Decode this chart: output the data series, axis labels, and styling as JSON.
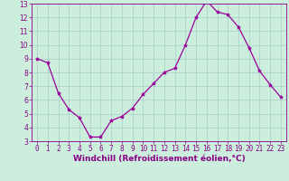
{
  "x": [
    0,
    1,
    2,
    3,
    4,
    5,
    6,
    7,
    8,
    9,
    10,
    11,
    12,
    13,
    14,
    15,
    16,
    17,
    18,
    19,
    20,
    21,
    22,
    23
  ],
  "y": [
    9.0,
    8.7,
    6.5,
    5.3,
    4.7,
    3.3,
    3.3,
    4.5,
    4.8,
    5.4,
    6.4,
    7.2,
    8.0,
    8.3,
    10.0,
    12.0,
    13.2,
    12.4,
    12.2,
    11.3,
    9.8,
    8.1,
    7.1,
    6.2
  ],
  "line_color": "#990099",
  "marker": "*",
  "marker_size": 3,
  "bg_color": "#cceedd",
  "grid_color": "#aacccc",
  "xlabel": "Windchill (Refroidissement éolien,°C)",
  "xlim": [
    -0.5,
    23.5
  ],
  "ylim": [
    3,
    13
  ],
  "yticks": [
    3,
    4,
    5,
    6,
    7,
    8,
    9,
    10,
    11,
    12,
    13
  ],
  "xticks": [
    0,
    1,
    2,
    3,
    4,
    5,
    6,
    7,
    8,
    9,
    10,
    11,
    12,
    13,
    14,
    15,
    16,
    17,
    18,
    19,
    20,
    21,
    22,
    23
  ],
  "tick_color": "#880088",
  "label_color": "#880088",
  "tick_fontsize": 5.5,
  "xlabel_fontsize": 6.5
}
